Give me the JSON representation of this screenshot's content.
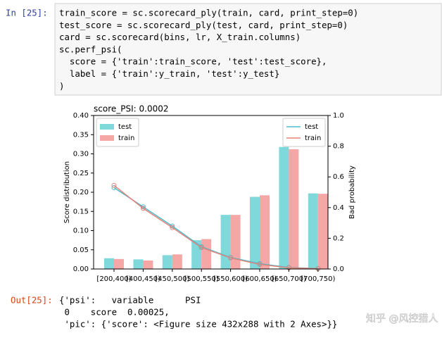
{
  "cell": {
    "in_prompt": "In [25]:",
    "code_lines": [
      "train_score = sc.scorecard_ply(train, card, print_step=0)",
      "test_score = sc.scorecard_ply(test, card, print_step=0)",
      "card = sc.scorecard(bins, lr, X_train.columns)",
      "sc.perf_psi(",
      "  score = {'train':train_score, 'test':test_score},",
      "  label = {'train':y_train, 'test':y_test}",
      ")"
    ]
  },
  "chart_data": {
    "type": "bar",
    "title": "score_PSI: 0.0002",
    "y_label": "Score distribution",
    "y2_label": "Bad probability",
    "categories": [
      "[200,400)",
      "[400,450)",
      "[450,500)",
      "[500,550)",
      "[550,600)",
      "[600,650)",
      "[650,700)",
      "[700,750)"
    ],
    "series": [
      {
        "name": "test",
        "type": "bar",
        "color": "#7fd8da",
        "values": [
          0.028,
          0.025,
          0.036,
          0.075,
          0.141,
          0.188,
          0.318,
          0.197
        ]
      },
      {
        "name": "train",
        "type": "bar",
        "color": "#f4a7a5",
        "values": [
          0.026,
          0.022,
          0.038,
          0.078,
          0.141,
          0.192,
          0.312,
          0.196
        ]
      },
      {
        "name": "test",
        "type": "line",
        "axis": "y2",
        "color": "#4fbccb",
        "values": [
          0.53,
          0.405,
          0.28,
          0.145,
          0.075,
          0.035,
          0.01,
          0.003
        ]
      },
      {
        "name": "train",
        "type": "line",
        "axis": "y2",
        "color": "#e2837c",
        "values": [
          0.545,
          0.395,
          0.27,
          0.14,
          0.072,
          0.03,
          0.008,
          0.002
        ]
      }
    ],
    "ylim": [
      0,
      0.4
    ],
    "yticks": [
      {
        "value": 0,
        "label": "0.00"
      },
      0.05,
      {
        "value": 0.1,
        "label": "0.10"
      },
      0.15,
      {
        "value": 0.2,
        "label": "0.20"
      },
      0.25,
      {
        "value": 0.3,
        "label": "0.30"
      },
      0.35,
      {
        "value": 0.4,
        "label": "0.40"
      }
    ],
    "y2lim": [
      0,
      1
    ],
    "y2ticks": [
      {
        "value": 0,
        "label": "0.0"
      },
      0.2,
      0.4,
      0.6,
      0.8,
      {
        "value": 1,
        "label": "1.0"
      }
    ],
    "legend": {
      "y": "upper left",
      "y2": "upper right"
    },
    "grid": false
  },
  "output": {
    "out_prompt": "Out[25]:",
    "lines": [
      "{'psi':   variable      PSI",
      " 0    score  0.00025,",
      " 'pic': {'score': <Figure size 432x288 with 2 Axes>}}"
    ]
  },
  "watermark": "知乎 @风控猎人"
}
